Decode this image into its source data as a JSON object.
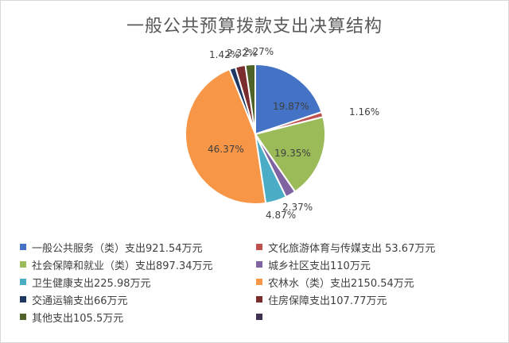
{
  "chart_data": {
    "type": "pie",
    "title": "一般公共预算拨款支出决算结构",
    "legend_position": "bottom",
    "slices": [
      {
        "name": "一般公共服务（类）支出921.54万元",
        "value": 19.87,
        "label": "19.87%",
        "color": "#4472C4"
      },
      {
        "name": "文化旅游体育与传媒支出 53.67万元",
        "value": 1.16,
        "label": "1.16%",
        "color": "#C0504D"
      },
      {
        "name": "社会保障和就业（类）支出897.34万元",
        "value": 19.35,
        "label": "19.35%",
        "color": "#9BBB59"
      },
      {
        "name": "城乡社区支出110万元",
        "value": 2.37,
        "label": "2.37%",
        "color": "#8064A2"
      },
      {
        "name": "卫生健康支出225.98万元",
        "value": 4.87,
        "label": "4.87%",
        "color": "#4BACC6"
      },
      {
        "name": "农林水（类）支出2150.54万元",
        "value": 46.37,
        "label": "46.37%",
        "color": "#F79646"
      },
      {
        "name": "交通运输支出66万元",
        "value": 1.42,
        "label": "1.42%",
        "color": "#1F3864"
      },
      {
        "name": "住房保障支出107.77万元",
        "value": 2.32,
        "label": "2.32%",
        "color": "#7B2C2C"
      },
      {
        "name": "其他支出105.5万元",
        "value": 2.27,
        "label": "2.27%",
        "color": "#4F6228"
      }
    ],
    "extra_legend_color": "#403151"
  }
}
